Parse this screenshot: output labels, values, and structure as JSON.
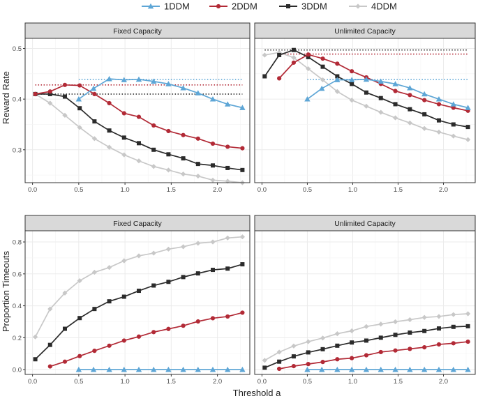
{
  "legend": [
    {
      "name": "1DDM",
      "color": "#5ea6d6",
      "marker": "triangle"
    },
    {
      "name": "2DDM",
      "color": "#b22a36",
      "marker": "circle"
    },
    {
      "name": "3DDM",
      "color": "#2b2b2b",
      "marker": "square"
    },
    {
      "name": "4DDM",
      "color": "#c8c8c8",
      "marker": "diamond"
    }
  ],
  "xlabel": "Threshold a",
  "chart_data": [
    {
      "type": "line",
      "row_label": "Reward Rate",
      "facet": "Fixed Capacity",
      "ylim": [
        0.235,
        0.52
      ],
      "yticks": [
        0.3,
        0.4,
        0.5
      ],
      "xlim": [
        -0.08,
        2.35
      ],
      "xticks": [
        0.0,
        0.5,
        1.0,
        1.5,
        2.0
      ],
      "series": [
        {
          "name": "1DDM",
          "x": [
            0.5,
            0.66,
            0.83,
            0.99,
            1.15,
            1.31,
            1.47,
            1.63,
            1.79,
            1.95,
            2.11,
            2.27
          ],
          "values": [
            0.4,
            0.421,
            0.44,
            0.438,
            0.439,
            0.435,
            0.43,
            0.422,
            0.412,
            0.4,
            0.39,
            0.383
          ],
          "ref": 0.439
        },
        {
          "name": "2DDM",
          "x": [
            0.03,
            0.19,
            0.35,
            0.51,
            0.67,
            0.83,
            0.99,
            1.15,
            1.31,
            1.47,
            1.63,
            1.79,
            1.95,
            2.11,
            2.27
          ],
          "values": [
            0.41,
            0.415,
            0.428,
            0.427,
            0.41,
            0.392,
            0.372,
            0.365,
            0.348,
            0.337,
            0.329,
            0.322,
            0.312,
            0.306,
            0.303
          ],
          "ref": 0.428
        },
        {
          "name": "3DDM",
          "x": [
            0.03,
            0.19,
            0.35,
            0.51,
            0.67,
            0.83,
            0.99,
            1.15,
            1.31,
            1.47,
            1.63,
            1.79,
            1.95,
            2.11,
            2.27
          ],
          "values": [
            0.41,
            0.41,
            0.405,
            0.382,
            0.356,
            0.338,
            0.324,
            0.313,
            0.3,
            0.291,
            0.283,
            0.272,
            0.269,
            0.264,
            0.26
          ],
          "ref": 0.41
        },
        {
          "name": "4DDM",
          "x": [
            0.03,
            0.19,
            0.35,
            0.51,
            0.67,
            0.83,
            0.99,
            1.15,
            1.31,
            1.47,
            1.63,
            1.79,
            1.95,
            2.11,
            2.27
          ],
          "values": [
            0.41,
            0.392,
            0.368,
            0.344,
            0.322,
            0.305,
            0.29,
            0.278,
            0.267,
            0.26,
            0.252,
            0.248,
            0.24,
            0.238,
            0.235
          ],
          "ref": null
        }
      ]
    },
    {
      "type": "line",
      "row_label": "Reward Rate",
      "facet": "Unlimited Capacity",
      "ylim": [
        0.235,
        0.52
      ],
      "yticks": [
        0.3,
        0.4,
        0.5
      ],
      "xlim": [
        -0.08,
        2.35
      ],
      "xticks": [
        0.0,
        0.5,
        1.0,
        1.5,
        2.0
      ],
      "series": [
        {
          "name": "1DDM",
          "x": [
            0.5,
            0.66,
            0.83,
            0.99,
            1.15,
            1.31,
            1.47,
            1.63,
            1.79,
            1.95,
            2.11,
            2.27
          ],
          "values": [
            0.4,
            0.421,
            0.438,
            0.438,
            0.439,
            0.435,
            0.43,
            0.422,
            0.41,
            0.4,
            0.39,
            0.383
          ],
          "ref": 0.439
        },
        {
          "name": "2DDM",
          "x": [
            0.19,
            0.35,
            0.51,
            0.67,
            0.83,
            0.99,
            1.15,
            1.31,
            1.47,
            1.63,
            1.79,
            1.95,
            2.11,
            2.27
          ],
          "values": [
            0.441,
            0.472,
            0.488,
            0.48,
            0.47,
            0.455,
            0.443,
            0.43,
            0.416,
            0.408,
            0.398,
            0.39,
            0.383,
            0.377
          ],
          "ref": 0.489
        },
        {
          "name": "3DDM",
          "x": [
            0.03,
            0.19,
            0.35,
            0.51,
            0.67,
            0.83,
            0.99,
            1.15,
            1.31,
            1.47,
            1.63,
            1.79,
            1.95,
            2.11,
            2.27
          ],
          "values": [
            0.445,
            0.487,
            0.497,
            0.483,
            0.464,
            0.445,
            0.43,
            0.413,
            0.402,
            0.39,
            0.38,
            0.37,
            0.358,
            0.35,
            0.345
          ],
          "ref": 0.497
        },
        {
          "name": "4DDM",
          "x": [
            0.03,
            0.19,
            0.35,
            0.51,
            0.67,
            0.83,
            0.99,
            1.15,
            1.31,
            1.47,
            1.63,
            1.79,
            1.95,
            2.11,
            2.27
          ],
          "values": [
            0.487,
            0.492,
            0.482,
            0.46,
            0.438,
            0.415,
            0.398,
            0.386,
            0.374,
            0.363,
            0.353,
            0.342,
            0.335,
            0.327,
            0.32
          ],
          "ref": null
        }
      ]
    },
    {
      "type": "line",
      "row_label": "Proportion Timeouts",
      "facet": "Fixed Capacity",
      "ylim": [
        -0.03,
        0.87
      ],
      "yticks": [
        0.0,
        0.2,
        0.4,
        0.6,
        0.8
      ],
      "xlim": [
        -0.08,
        2.35
      ],
      "xticks": [
        0.0,
        0.5,
        1.0,
        1.5,
        2.0
      ],
      "series": [
        {
          "name": "1DDM",
          "x": [
            0.5,
            0.66,
            0.83,
            0.99,
            1.15,
            1.31,
            1.47,
            1.63,
            1.79,
            1.95,
            2.11,
            2.27
          ],
          "values": [
            0,
            0,
            0,
            0,
            0,
            0,
            0,
            0,
            0,
            0,
            0,
            0
          ]
        },
        {
          "name": "2DDM",
          "x": [
            0.19,
            0.35,
            0.51,
            0.67,
            0.83,
            0.99,
            1.15,
            1.31,
            1.47,
            1.63,
            1.79,
            1.95,
            2.11,
            2.27
          ],
          "values": [
            0.02,
            0.05,
            0.085,
            0.118,
            0.15,
            0.182,
            0.207,
            0.235,
            0.255,
            0.275,
            0.302,
            0.322,
            0.333,
            0.357
          ]
        },
        {
          "name": "3DDM",
          "x": [
            0.03,
            0.19,
            0.35,
            0.51,
            0.67,
            0.83,
            0.99,
            1.15,
            1.31,
            1.47,
            1.63,
            1.79,
            1.95,
            2.11,
            2.27
          ],
          "values": [
            0.065,
            0.155,
            0.256,
            0.323,
            0.38,
            0.428,
            0.457,
            0.494,
            0.527,
            0.55,
            0.58,
            0.603,
            0.625,
            0.633,
            0.66
          ]
        },
        {
          "name": "4DDM",
          "x": [
            0.03,
            0.19,
            0.35,
            0.51,
            0.67,
            0.83,
            0.99,
            1.15,
            1.31,
            1.47,
            1.63,
            1.79,
            1.95,
            2.11,
            2.27
          ],
          "values": [
            0.205,
            0.38,
            0.48,
            0.557,
            0.61,
            0.64,
            0.682,
            0.713,
            0.73,
            0.755,
            0.77,
            0.792,
            0.8,
            0.825,
            0.832
          ]
        }
      ]
    },
    {
      "type": "line",
      "row_label": "Proportion Timeouts",
      "facet": "Unlimited Capacity",
      "ylim": [
        -0.03,
        0.87
      ],
      "yticks": [
        0.0,
        0.2,
        0.4,
        0.6,
        0.8
      ],
      "xlim": [
        -0.08,
        2.35
      ],
      "xticks": [
        0.0,
        0.5,
        1.0,
        1.5,
        2.0
      ],
      "series": [
        {
          "name": "1DDM",
          "x": [
            0.5,
            0.66,
            0.83,
            0.99,
            1.15,
            1.31,
            1.47,
            1.63,
            1.79,
            1.95,
            2.11,
            2.27
          ],
          "values": [
            0,
            0,
            0,
            0,
            0,
            0,
            0,
            0,
            0,
            0,
            0,
            0
          ]
        },
        {
          "name": "2DDM",
          "x": [
            0.19,
            0.35,
            0.51,
            0.67,
            0.83,
            0.99,
            1.15,
            1.31,
            1.47,
            1.63,
            1.79,
            1.95,
            2.11,
            2.27
          ],
          "values": [
            0.005,
            0.022,
            0.035,
            0.048,
            0.065,
            0.072,
            0.09,
            0.11,
            0.12,
            0.13,
            0.14,
            0.158,
            0.165,
            0.175
          ]
        },
        {
          "name": "3DDM",
          "x": [
            0.03,
            0.19,
            0.35,
            0.51,
            0.67,
            0.83,
            0.99,
            1.15,
            1.31,
            1.47,
            1.63,
            1.79,
            1.95,
            2.11,
            2.27
          ],
          "values": [
            0.012,
            0.05,
            0.083,
            0.108,
            0.128,
            0.15,
            0.17,
            0.182,
            0.2,
            0.218,
            0.232,
            0.242,
            0.258,
            0.268,
            0.272
          ]
        },
        {
          "name": "4DDM",
          "x": [
            0.03,
            0.19,
            0.35,
            0.51,
            0.67,
            0.83,
            0.99,
            1.15,
            1.31,
            1.47,
            1.63,
            1.79,
            1.95,
            2.11,
            2.27
          ],
          "values": [
            0.058,
            0.11,
            0.148,
            0.175,
            0.198,
            0.225,
            0.243,
            0.27,
            0.285,
            0.3,
            0.313,
            0.327,
            0.333,
            0.345,
            0.35
          ]
        }
      ]
    }
  ]
}
